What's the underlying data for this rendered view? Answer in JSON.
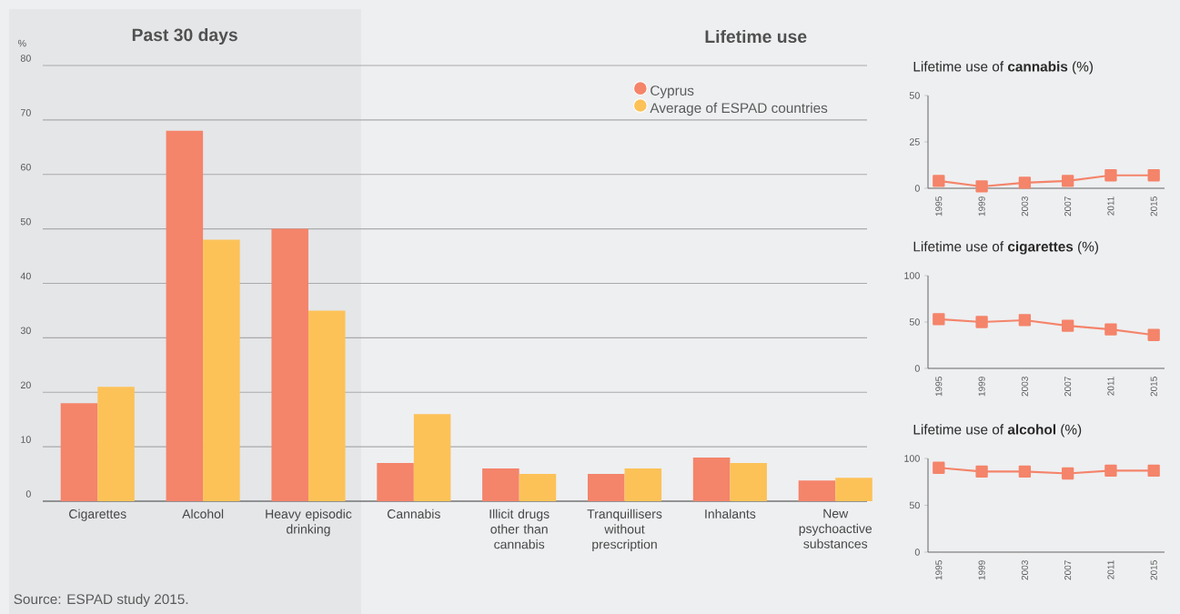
{
  "chart_data": [
    {
      "type": "bar",
      "ylabel": "%",
      "categories": [
        "Cigarettes",
        "Alcohol",
        "Heavy episodic drinking",
        "Cannabis",
        "Illicit drugs other than cannabis",
        "Tranquillisers without prescription",
        "Inhalants",
        "New psychoactive substances"
      ],
      "series": [
        {
          "name": "Cyprus",
          "color": "#f4846a",
          "values": [
            18,
            68,
            50,
            7,
            6,
            5,
            8,
            3.8
          ]
        },
        {
          "name": "Average of ESPAD countries",
          "color": "#fcc258",
          "values": [
            21,
            48,
            35,
            16,
            5,
            6,
            7,
            4.3
          ]
        }
      ],
      "ylim": [
        0,
        80
      ],
      "yticks": [
        0,
        10,
        20,
        30,
        40,
        50,
        60,
        70,
        80
      ],
      "grid": "y",
      "legend": "top right",
      "bands": [
        {
          "axis": "x",
          "from": "Cigarettes",
          "to": "Heavy episodic drinking",
          "label": "Past 30 days",
          "color": "#e5e6e8"
        }
      ],
      "annotations": [
        "Lifetime use",
        "Source: ESPAD study 2015."
      ]
    },
    {
      "type": "line",
      "title": "Lifetime use of **cannabis** (%)",
      "x": [
        1995,
        1999,
        2003,
        2007,
        2011,
        2015
      ],
      "series": [
        {
          "color": "#f4846a",
          "values": [
            4,
            1,
            3,
            4,
            7,
            7
          ]
        }
      ],
      "xlim": [
        1994,
        2016
      ],
      "xticks": [
        1995,
        1999,
        2003,
        2007,
        2011,
        2015
      ],
      "ylim": [
        0,
        50
      ],
      "yticks": [
        0,
        25,
        50
      ],
      "marker": "square"
    },
    {
      "type": "line",
      "title": "Lifetime use of **cigarettes** (%)",
      "x": [
        1995,
        1999,
        2003,
        2007,
        2011,
        2015
      ],
      "series": [
        {
          "color": "#f4846a",
          "values": [
            53,
            50,
            52,
            46,
            42,
            36
          ]
        }
      ],
      "xlim": [
        1994,
        2016
      ],
      "xticks": [
        1995,
        1999,
        2003,
        2007,
        2011,
        2015
      ],
      "ylim": [
        0,
        100
      ],
      "yticks": [
        0,
        50,
        100
      ],
      "marker": "square"
    },
    {
      "type": "line",
      "title": "Lifetime use of **alcohol** (%)",
      "x": [
        1995,
        1999,
        2003,
        2007,
        2011,
        2015
      ],
      "series": [
        {
          "color": "#f4846a",
          "values": [
            90,
            86,
            86,
            84,
            87,
            87
          ]
        }
      ],
      "xlim": [
        1994,
        2016
      ],
      "xticks": [
        1995,
        1999,
        2003,
        2007,
        2011,
        2015
      ],
      "ylim": [
        0,
        100
      ],
      "yticks": [
        0,
        50,
        100
      ],
      "marker": "square"
    }
  ]
}
